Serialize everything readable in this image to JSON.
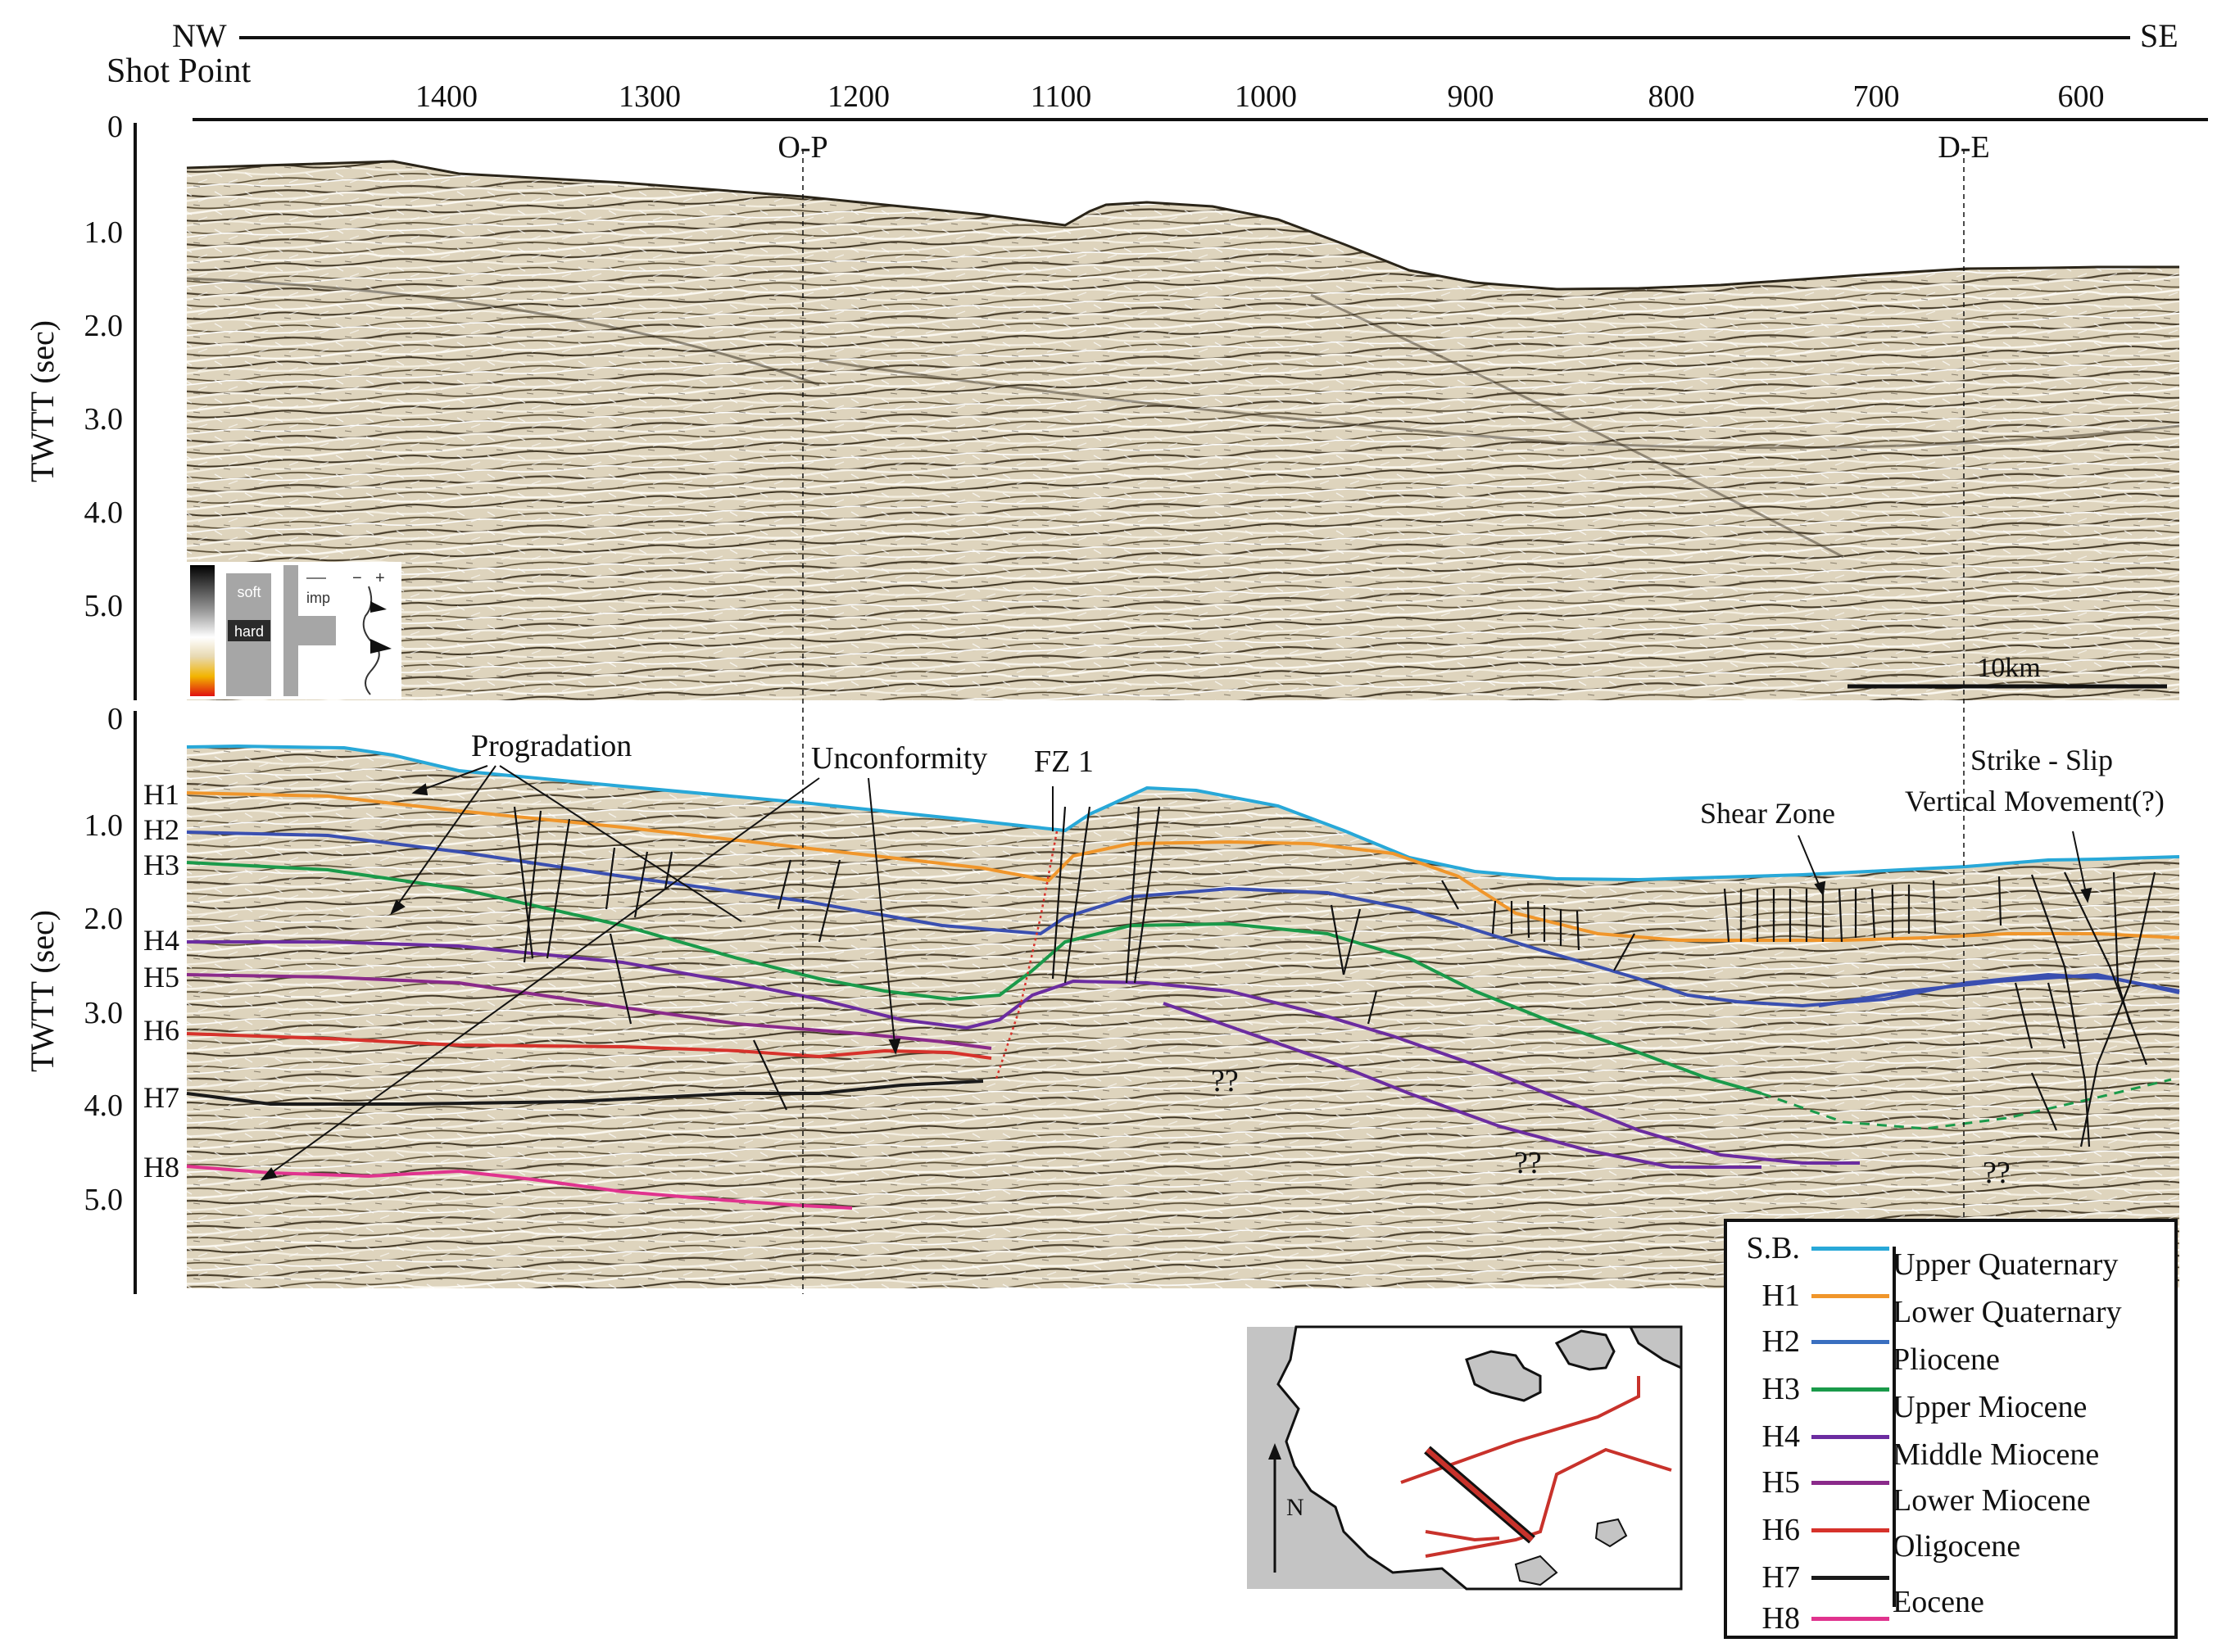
{
  "header": {
    "direction_left": "NW",
    "direction_right": "SE",
    "shot_point_label": "Shot Point",
    "shot_points": [
      "1400",
      "1300",
      "1200",
      "1100",
      "1000",
      "900",
      "800",
      "700",
      "600"
    ]
  },
  "intersections": [
    {
      "label": "O-P"
    },
    {
      "label": "D-E"
    }
  ],
  "axis": {
    "ylabel": "TWTT (sec)",
    "zero_label": "0",
    "ticks": [
      "1.0",
      "2.0",
      "3.0",
      "4.0",
      "5.0"
    ]
  },
  "top_panel": {
    "colorbar": {
      "soft_label": "soft",
      "hard_label": "hard",
      "imp_label": "imp",
      "polarity_minus": "−",
      "polarity_plus": "+"
    },
    "scale_bar_label": "10km"
  },
  "bottom_panel": {
    "horizons": [
      {
        "code": "H1",
        "color": "#f0962b"
      },
      {
        "code": "H2",
        "color": "#3a4fb0"
      },
      {
        "code": "H3",
        "color": "#1a9a4a"
      },
      {
        "code": "H4",
        "color": "#6b2ca0"
      },
      {
        "code": "H5",
        "color": "#8a2a8a"
      },
      {
        "code": "H6",
        "color": "#d6322b"
      },
      {
        "code": "H7",
        "color": "#1a1a1a"
      },
      {
        "code": "H8",
        "color": "#e0338e"
      }
    ],
    "annotations": {
      "progradation": "Progradation",
      "unconformity": "Unconformity",
      "fault_zone": "FZ 1",
      "shear_zone": "Shear Zone",
      "strike_slip": "Strike - Slip",
      "vertical_movement": "Vertical Movement(?)",
      "unknown": "??"
    },
    "seafloor_color": "#28a8d8"
  },
  "legend": {
    "rows": [
      {
        "code": "S.B.",
        "color": "#28a8d8",
        "age": "Upper Quaternary"
      },
      {
        "code": "H1",
        "color": "#f0962b",
        "age": "Lower  Quaternary"
      },
      {
        "code": "H2",
        "color": "#3a6fc0",
        "age": "Pliocene"
      },
      {
        "code": "H3",
        "color": "#1a9a4a",
        "age": "Upper  Miocene"
      },
      {
        "code": "H4",
        "color": "#6b2ca0",
        "age": "Middle Miocene"
      },
      {
        "code": "H5",
        "color": "#8a2a8a",
        "age": "Lower Miocene"
      },
      {
        "code": "H6",
        "color": "#d6322b",
        "age": "Oligocene"
      },
      {
        "code": "H7",
        "color": "#1a1a1a",
        "age": "Eocene"
      },
      {
        "code": "H8",
        "color": "#e0338e",
        "age": ""
      }
    ]
  },
  "inset_map": {
    "north_label": "N",
    "land_color": "#c4c4c4",
    "line_color": "#c8322b"
  }
}
